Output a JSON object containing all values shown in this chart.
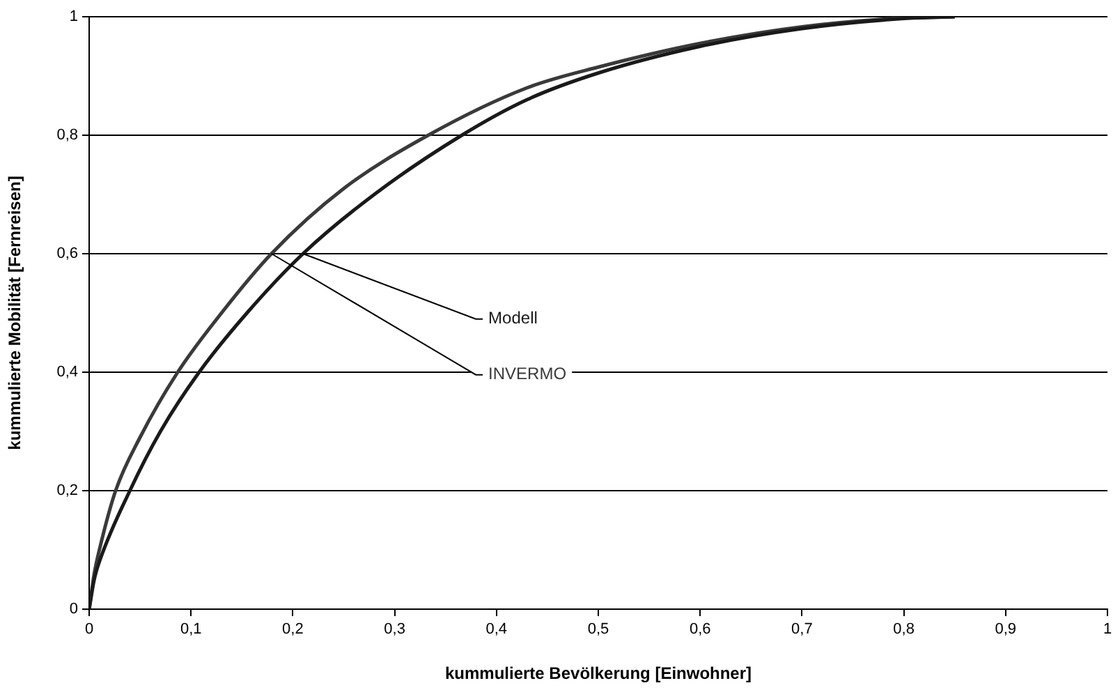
{
  "chart_data": {
    "type": "line",
    "xlabel": "kummulierte Bevölkerung [Einwohner]",
    "ylabel": "kummulierte Mobilität [Fernreisen]",
    "series": [
      {
        "name": "Modell",
        "color": "#1a1a1a",
        "x": [
          0,
          0.005,
          0.01,
          0.04,
          0.07,
          0.108,
          0.155,
          0.21,
          0.28,
          0.366,
          0.43,
          0.5,
          0.6,
          0.7,
          0.8,
          0.85
        ],
        "values": [
          0,
          0.05,
          0.08,
          0.2,
          0.3,
          0.4,
          0.5,
          0.6,
          0.7,
          0.8,
          0.86,
          0.905,
          0.95,
          0.98,
          0.997,
          1
        ]
      },
      {
        "name": "INVERMO",
        "color": "#3a3a3a",
        "x": [
          0,
          0.005,
          0.01,
          0.026,
          0.05,
          0.087,
          0.13,
          0.179,
          0.25,
          0.333,
          0.43,
          0.5,
          0.6,
          0.7,
          0.8,
          0.85
        ],
        "values": [
          0,
          0.06,
          0.1,
          0.2,
          0.29,
          0.4,
          0.5,
          0.6,
          0.71,
          0.8,
          0.88,
          0.915,
          0.955,
          0.983,
          0.998,
          1
        ]
      }
    ],
    "xlim": [
      0,
      1
    ],
    "xticks": [
      0,
      {
        "value": 0.1,
        "label": "0,1"
      },
      {
        "value": 0.2,
        "label": "0,2"
      },
      {
        "value": 0.3,
        "label": "0,3"
      },
      {
        "value": 0.4,
        "label": "0,4"
      },
      {
        "value": 0.5,
        "label": "0,5"
      },
      {
        "value": 0.6,
        "label": "0,6"
      },
      {
        "value": 0.7,
        "label": "0,7"
      },
      {
        "value": 0.8,
        "label": "0,8"
      },
      {
        "value": 0.9,
        "label": "0,9"
      },
      1
    ],
    "ylim": [
      0,
      1
    ],
    "yticks": [
      0,
      {
        "value": 0.2,
        "label": "0,2"
      },
      {
        "value": 0.4,
        "label": "0,4"
      },
      {
        "value": 0.6,
        "label": "0,6"
      },
      {
        "value": 0.8,
        "label": "0,8"
      },
      1
    ],
    "grid": "y",
    "legend": false,
    "marker": "none",
    "line_style": "solid"
  }
}
